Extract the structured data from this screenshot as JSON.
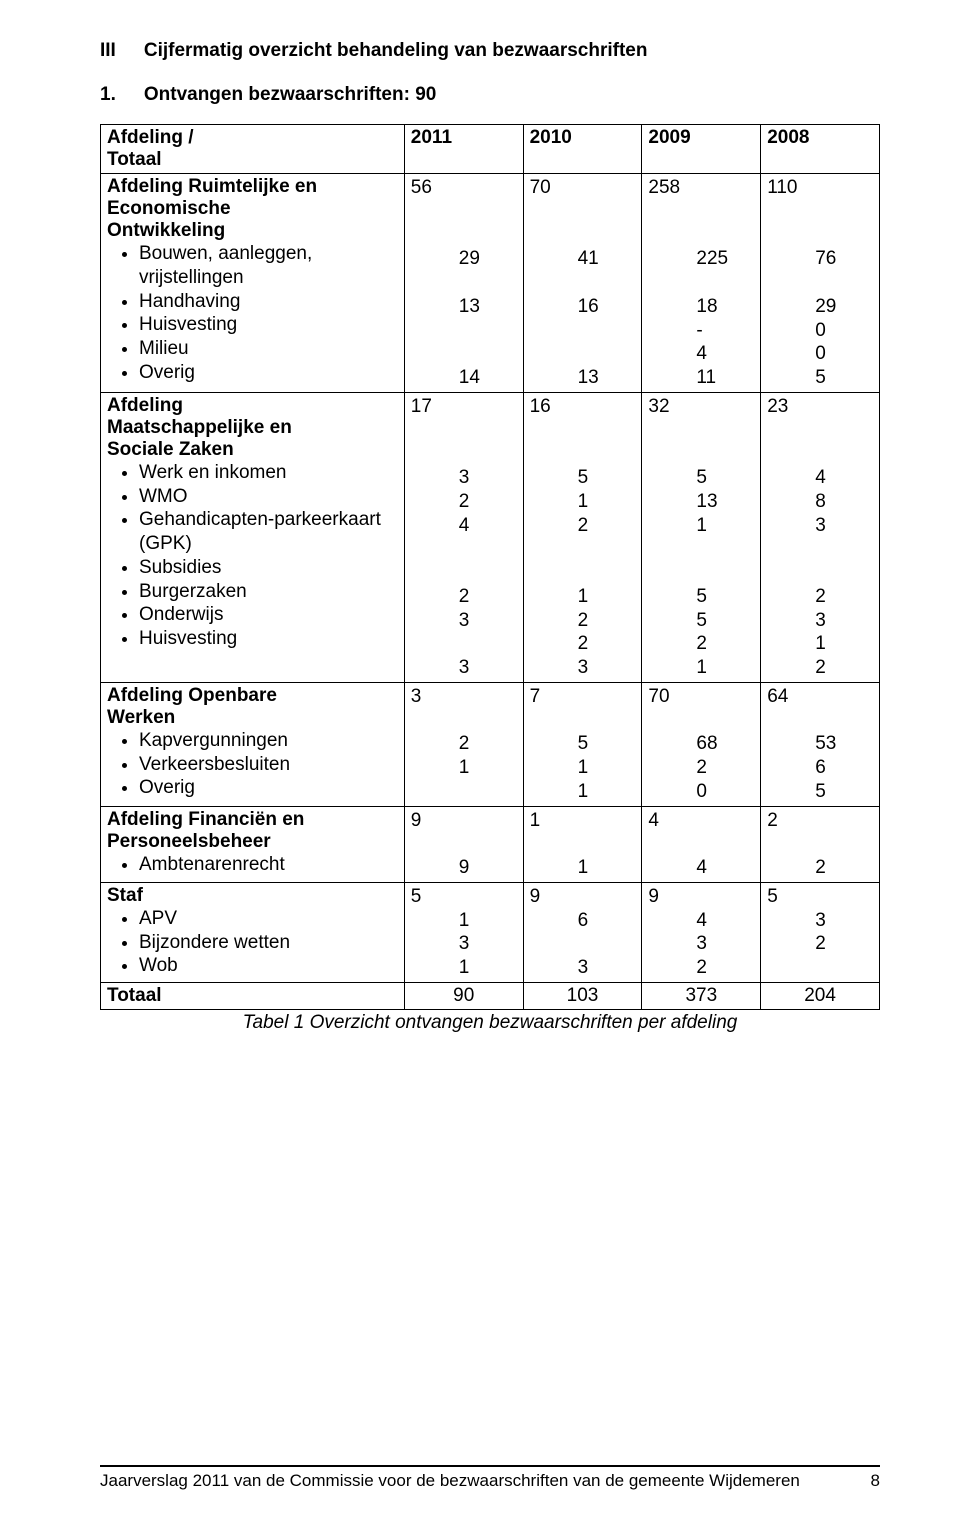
{
  "heading": {
    "roman": "III",
    "title": "Cijfermatig overzicht behandeling van bezwaarschriften"
  },
  "sub": {
    "num": "1.",
    "title": "Ontvangen bezwaarschriften: 90"
  },
  "header": {
    "label_lines": [
      "Afdeling            /",
      "Totaal"
    ],
    "y2011": "2011",
    "y2010": "2010",
    "y2009": "2009",
    "y2008": "2008"
  },
  "groups": [
    {
      "title_lines": [
        "Afdeling Ruimtelijke en",
        "Economische",
        "Ontwikkeling"
      ],
      "items": [
        "Bouwen, aanleggen, vrijstellingen",
        "Handhaving",
        "Huisvesting",
        "Milieu",
        "Overig"
      ],
      "cols": {
        "c2011": {
          "outer": "56",
          "inner": [
            "",
            "",
            "29",
            "",
            "13",
            "",
            "",
            "14"
          ]
        },
        "c2010": {
          "outer": "70",
          "inner": [
            "",
            "",
            "41",
            "",
            "16",
            "",
            "",
            "13"
          ]
        },
        "c2009": {
          "outer": "258",
          "inner": [
            "",
            "",
            "225",
            "",
            "18",
            "-",
            "4",
            "11"
          ]
        },
        "c2008": {
          "outer": "110",
          "inner": [
            "",
            "",
            "76",
            "",
            "29",
            "0",
            "0",
            "5"
          ]
        }
      }
    },
    {
      "title_lines": [
        "Afdeling",
        "Maatschappelijke en",
        "Sociale Zaken"
      ],
      "items": [
        "Werk en inkomen",
        "WMO",
        "Gehandicapten-parkeerkaart (GPK)",
        "Subsidies",
        "Burgerzaken",
        "Onderwijs",
        "Huisvesting"
      ],
      "cols": {
        "c2011": {
          "outer": "17",
          "inner": [
            "",
            "",
            "3",
            "2",
            "4",
            "",
            "",
            "2",
            "3",
            "",
            "3"
          ]
        },
        "c2010": {
          "outer": "16",
          "inner": [
            "",
            "",
            "5",
            "1",
            "2",
            "",
            "",
            "1",
            "2",
            "2",
            "3"
          ]
        },
        "c2009": {
          "outer": "32",
          "inner": [
            "",
            "",
            "5",
            "13",
            "1",
            "",
            "",
            "5",
            "5",
            "2",
            "1"
          ]
        },
        "c2008": {
          "outer": "23",
          "inner": [
            "",
            "",
            "4",
            "8",
            "3",
            "",
            "",
            "2",
            "3",
            "1",
            "2"
          ]
        }
      }
    },
    {
      "title_lines": [
        "Afdeling Openbare",
        "Werken"
      ],
      "items": [
        "Kapvergunningen",
        "Verkeersbesluiten",
        "Overig"
      ],
      "cols": {
        "c2011": {
          "outer": "3",
          "inner": [
            "",
            "2",
            "1",
            ""
          ]
        },
        "c2010": {
          "outer": "7",
          "inner": [
            "",
            "5",
            "1",
            "1"
          ]
        },
        "c2009": {
          "outer": "70",
          "inner": [
            "",
            "68",
            "2",
            "0"
          ]
        },
        "c2008": {
          "outer": "64",
          "inner": [
            "",
            "53",
            "6",
            "5"
          ]
        }
      }
    },
    {
      "title_lines": [
        "Afdeling  Financiën en",
        "Personeelsbeheer"
      ],
      "items": [
        "Ambtenarenrecht"
      ],
      "cols": {
        "c2011": {
          "outer": "9",
          "inner": [
            "",
            "9"
          ]
        },
        "c2010": {
          "outer": "1",
          "inner": [
            "",
            "1"
          ]
        },
        "c2009": {
          "outer": "4",
          "inner": [
            "",
            "4"
          ]
        },
        "c2008": {
          "outer": "2",
          "inner": [
            "",
            "2"
          ]
        }
      }
    },
    {
      "title_lines": [
        "Staf"
      ],
      "items": [
        "APV",
        "Bijzondere wetten",
        "Wob"
      ],
      "cols": {
        "c2011": {
          "outer": "5",
          "inner": [
            "1",
            "3",
            "1"
          ]
        },
        "c2010": {
          "outer": "9",
          "inner": [
            "6",
            "",
            "3"
          ]
        },
        "c2009": {
          "outer": "9",
          "inner": [
            "4",
            "3",
            "2"
          ]
        },
        "c2008": {
          "outer": "5",
          "inner": [
            "3",
            "2",
            ""
          ]
        }
      }
    }
  ],
  "totals": {
    "label": "Totaal",
    "c2011": "90",
    "c2010": "103",
    "c2009": "373",
    "c2008": "204"
  },
  "caption": "Tabel 1 Overzicht ontvangen bezwaarschriften per afdeling",
  "footer": {
    "text": "Jaarverslag 2011 van de Commissie voor de bezwaarschriften van de gemeente Wijdemeren",
    "page": "8"
  }
}
